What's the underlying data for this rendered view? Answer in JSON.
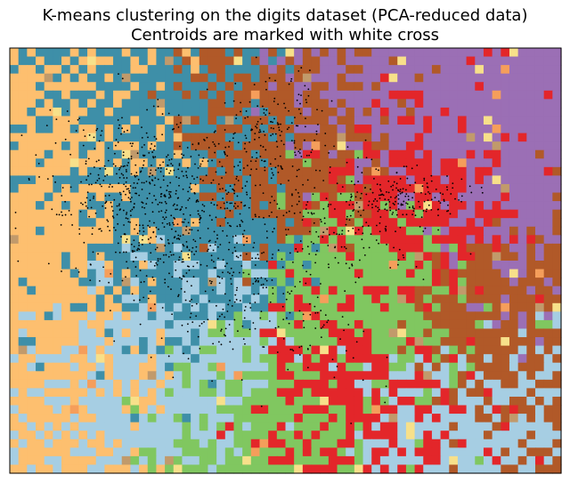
{
  "chart_data": {
    "type": "heatmap",
    "title": "K-means clustering on the digits dataset (PCA-reduced data)",
    "subtitle": "Centroids are marked with white cross",
    "xlabel": "",
    "ylabel": "",
    "show_ticks": false,
    "grid": false,
    "legend": "none",
    "n_clusters": 10,
    "cluster_colors": [
      "#a6cee3",
      "#1f78b4",
      "#b2df8a",
      "#33a02c",
      "#fb9a99",
      "#e31a1c",
      "#fdbf6f",
      "#ff7f00",
      "#cab2d6",
      "#6a3d9a"
    ],
    "rendered_region_colors": {
      "orange": "#fdbf6f",
      "teal": "#3e8fa8",
      "light_blue": "#a6cee3",
      "green": "#80c760",
      "red": "#e3262a",
      "brown": "#b15928",
      "purple": "#9b6fb5",
      "tan": "#c19a6b",
      "salmon": "#f59e5b",
      "yellow": "#f7e08a"
    },
    "region_layout": [
      {
        "cluster": "orange",
        "area": "upper-left and left edge"
      },
      {
        "cluster": "teal",
        "area": "upper-left, interleaved with orange"
      },
      {
        "cluster": "light_blue",
        "area": "center-left and bottom"
      },
      {
        "cluster": "green",
        "area": "bottom-center and right-center"
      },
      {
        "cluster": "red",
        "area": "bottom-right and center-right"
      },
      {
        "cluster": "brown",
        "area": "top-center and right"
      },
      {
        "cluster": "purple",
        "area": "upper-right"
      }
    ],
    "scatter": {
      "color": "#000000",
      "description": "PCA-reduced digit samples plotted as small black points, densest in the upper-left to center band"
    },
    "centroids": {
      "marker": "x",
      "color": "#ffffff",
      "count": 10
    }
  }
}
